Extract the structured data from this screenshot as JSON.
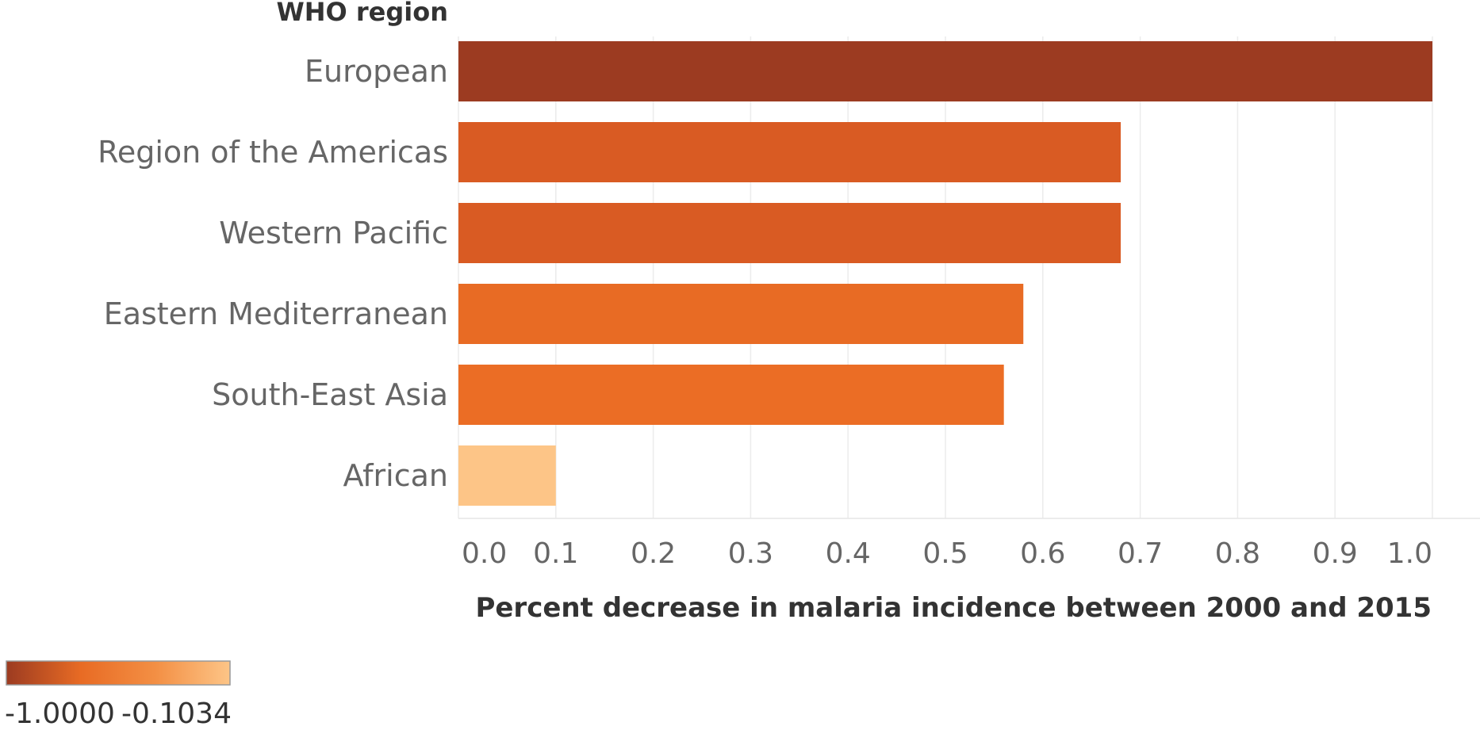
{
  "chart_data": {
    "type": "bar",
    "orientation": "horizontal",
    "row_header": "WHO region",
    "categories": [
      "European",
      "Region of the Americas",
      "Western Pacific",
      "Eastern Mediterranean",
      "South-East Asia",
      "African"
    ],
    "values": [
      1.0,
      0.68,
      0.68,
      0.58,
      0.56,
      0.1
    ],
    "colors": [
      "#9c3b21",
      "#d95b23",
      "#d95b23",
      "#e86b24",
      "#eb6d25",
      "#fdc587"
    ],
    "xlabel": "Percent decrease in malaria incidence between 2000 and 2015",
    "ylabel": "",
    "xlim": [
      0,
      1.05
    ],
    "x_ticks": [
      "0.0",
      "0.1",
      "0.2",
      "0.3",
      "0.4",
      "0.5",
      "0.6",
      "0.7",
      "0.8",
      "0.9",
      "1.0"
    ],
    "grid": true,
    "legend": {
      "type": "color-gradient",
      "position": "bottom-left",
      "min_label": "-1.0000",
      "max_label": "-0.1034",
      "gradient": [
        "#9c3b21",
        "#e86b24",
        "#f38f44",
        "#fdc587"
      ]
    }
  }
}
